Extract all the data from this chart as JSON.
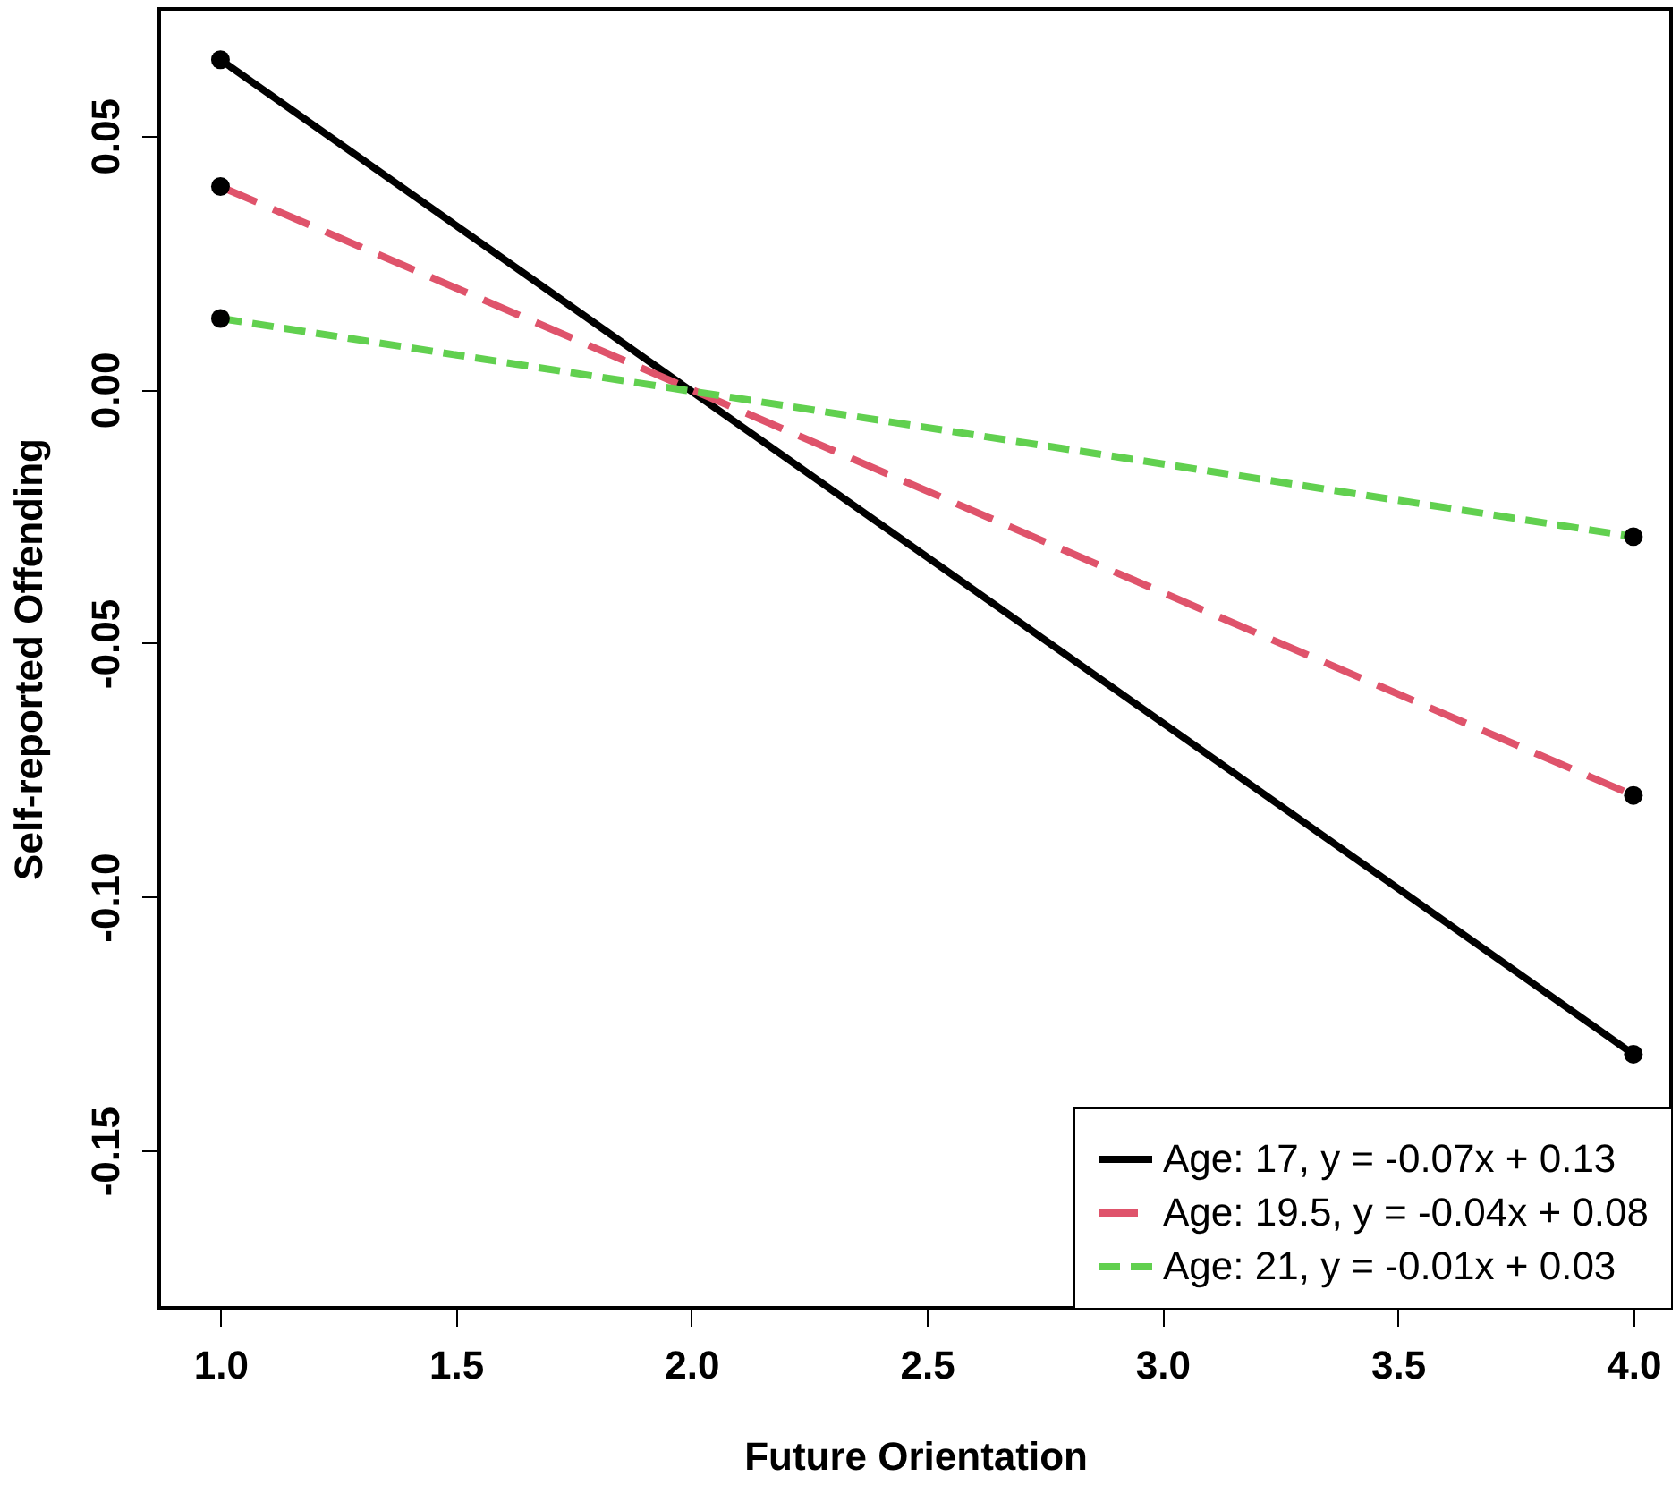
{
  "chart_data": {
    "type": "line",
    "xlabel": "Future Orientation",
    "ylabel": "Self-reported Offending",
    "x": [
      1,
      4
    ],
    "series": [
      {
        "name": "Age: 17, y = -0.07x + 0.13",
        "color": "#000000",
        "values": [
          0.065,
          -0.131
        ],
        "line_style": "solid"
      },
      {
        "name": "Age: 19.5, y = -0.04x + 0.08",
        "color": "#df536b",
        "values": [
          0.04,
          -0.08
        ],
        "line_style": "dashed"
      },
      {
        "name": "Age: 21, y = -0.01x + 0.03",
        "color": "#61d04f",
        "values": [
          0.014,
          -0.029
        ],
        "line_style": "dotted"
      }
    ],
    "xlim": [
      0.87,
      4.08
    ],
    "ylim": [
      -0.181,
      0.075
    ],
    "xticks": [
      {
        "value": 1,
        "label": "1.0"
      },
      {
        "value": 1.5,
        "label": "1.5"
      },
      {
        "value": 2,
        "label": "2.0"
      },
      {
        "value": 2.5,
        "label": "2.5"
      },
      {
        "value": 3,
        "label": "3.0"
      },
      {
        "value": 3.5,
        "label": "3.5"
      },
      {
        "value": 4,
        "label": "4.0"
      }
    ],
    "yticks": [
      {
        "value": -0.15,
        "label": "-0.15"
      },
      {
        "value": -0.1,
        "label": "-0.10"
      },
      {
        "value": -0.05,
        "label": "-0.05"
      },
      {
        "value": 0,
        "label": "0.00"
      },
      {
        "value": 0.05,
        "label": "0.05"
      }
    ],
    "marker": "circle",
    "grid": false,
    "legend": "bottom right"
  }
}
